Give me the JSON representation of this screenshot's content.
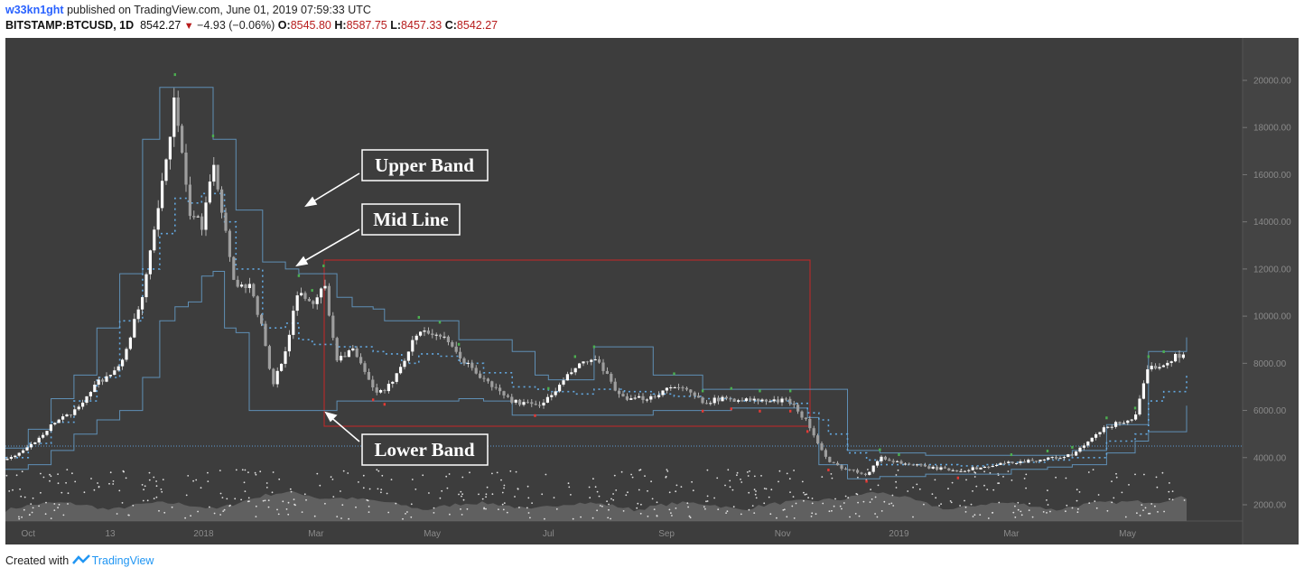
{
  "header": {
    "author": "w33kn1ght",
    "published_text": " published on TradingView.com, June 01, 2019 07:59:33 UTC",
    "symbol": "BITSTAMP:BTCUSD, 1D",
    "last": "8542.27",
    "change": "−4.93 (−0.06%)",
    "open_label": "O:",
    "open": "8545.80",
    "high_label": "H:",
    "high": "8587.75",
    "low_label": "L:",
    "low": "8457.33",
    "close_label": "C:",
    "close": "8542.27"
  },
  "footer": {
    "created_with": "Created with",
    "brand": "TradingView"
  },
  "colors": {
    "background": "#3d3d3d",
    "price_axis_bg": "#444444",
    "candle": "#ffffff",
    "band": "#5f8fb5",
    "mid_line": "#63a8e0",
    "highlight_box": "#c62828",
    "volume": "#666666",
    "up_marker": "#4caf50",
    "down_marker": "#e53935"
  },
  "annotations": [
    {
      "label": "Upper Band"
    },
    {
      "label": "Mid Line"
    },
    {
      "label": "Lower Band"
    }
  ],
  "chart_data": {
    "type": "candlestick",
    "x_ticks": [
      "Oct",
      "13",
      "2018",
      "Mar",
      "May",
      "Jul",
      "Sep",
      "Nov",
      "2019",
      "Mar",
      "May"
    ],
    "y_ticks": [
      "20000.00",
      "18000.00",
      "16000.00",
      "14000.00",
      "12000.00",
      "10000.00",
      "8000.00",
      "6000.00",
      "4000.00",
      "2000.00"
    ],
    "ylim": [
      1500,
      21500
    ],
    "x": [
      "2017-09-19",
      "2017-10-01",
      "2017-10-13",
      "2017-10-25",
      "2017-11-06",
      "2017-11-18",
      "2017-11-30",
      "2017-12-09",
      "2017-12-17",
      "2017-12-24",
      "2017-12-31",
      "2018-01-06",
      "2018-01-12",
      "2018-01-18",
      "2018-01-25",
      "2018-02-01",
      "2018-02-06",
      "2018-02-13",
      "2018-02-20",
      "2018-02-27",
      "2018-03-05",
      "2018-03-12",
      "2018-03-20",
      "2018-03-31",
      "2018-04-06",
      "2018-04-15",
      "2018-04-24",
      "2018-05-05",
      "2018-05-15",
      "2018-05-28",
      "2018-06-12",
      "2018-06-24",
      "2018-07-01",
      "2018-07-15",
      "2018-07-25",
      "2018-08-10",
      "2018-08-25",
      "2018-09-05",
      "2018-09-20",
      "2018-10-05",
      "2018-10-20",
      "2018-11-05",
      "2018-11-14",
      "2018-11-20",
      "2018-11-25",
      "2018-12-05",
      "2018-12-15",
      "2018-12-22",
      "2019-01-01",
      "2019-01-15",
      "2019-02-01",
      "2019-02-15",
      "2019-03-01",
      "2019-03-20",
      "2019-04-02",
      "2019-04-20",
      "2019-05-05",
      "2019-05-12",
      "2019-05-20",
      "2019-06-01"
    ],
    "series": [
      {
        "values": [
          3900,
          4400,
          5400,
          5900,
          7200,
          7800,
          10800,
          14800,
          19300,
          14500,
          13800,
          16800,
          13800,
          11200,
          11400,
          9400,
          7000,
          8600,
          11100,
          10500,
          11500,
          8200,
          8600,
          6900,
          6700,
          8000,
          9400,
          9200,
          8300,
          7300,
          6400,
          6200,
          6500,
          7800,
          8200,
          6400,
          6600,
          7100,
          6400,
          6500,
          6400,
          6400,
          5500,
          4500,
          3800,
          3500,
          3300,
          4000,
          3800,
          3600,
          3450,
          3600,
          3800,
          3950,
          4100,
          5300,
          5700,
          7800,
          8000,
          8542
        ]
      },
      {
        "values": [
          4400,
          5200,
          6500,
          7500,
          9500,
          11800,
          17500,
          19700,
          19700,
          19700,
          19700,
          17500,
          17500,
          14500,
          14500,
          12300,
          12300,
          12000,
          11800,
          11800,
          11800,
          10800,
          10400,
          10300,
          9800,
          9800,
          9800,
          9800,
          9000,
          9000,
          8500,
          7500,
          7300,
          7300,
          8700,
          8700,
          7500,
          7500,
          6900,
          6900,
          6900,
          6900,
          6900,
          6900,
          6900,
          4300,
          4300,
          4200,
          4200,
          4100,
          4100,
          4100,
          4100,
          4100,
          4300,
          5400,
          5400,
          8500,
          8500,
          9100
        ]
      },
      {
        "values": [
          4000,
          4600,
          5500,
          6400,
          7400,
          9800,
          12000,
          13500,
          15000,
          14800,
          15200,
          15200,
          14000,
          12000,
          12000,
          9500,
          9500,
          9700,
          9000,
          8800,
          8800,
          8700,
          8700,
          8500,
          8400,
          8000,
          8400,
          8300,
          8000,
          7600,
          7000,
          6900,
          6800,
          6700,
          6900,
          6800,
          6700,
          6600,
          6500,
          6400,
          6400,
          6300,
          5900,
          5600,
          5000,
          4200,
          3900,
          3700,
          3700,
          3700,
          3650,
          3700,
          3800,
          3900,
          4000,
          4700,
          5000,
          6400,
          6800,
          7500
        ]
      },
      {
        "values": [
          3500,
          3700,
          4300,
          5000,
          5600,
          6000,
          7400,
          9800,
          10400,
          10600,
          11700,
          11900,
          9500,
          9300,
          6000,
          6000,
          6000,
          6000,
          6000,
          6000,
          6000,
          6400,
          6400,
          6400,
          6400,
          6400,
          6400,
          6400,
          6500,
          6400,
          5800,
          5800,
          5800,
          5800,
          5800,
          5800,
          6000,
          6000,
          6000,
          6100,
          6100,
          6100,
          5700,
          3700,
          3700,
          3100,
          3100,
          3200,
          3200,
          3300,
          3300,
          3300,
          3500,
          3600,
          3700,
          4200,
          4700,
          5100,
          5100,
          6200
        ]
      }
    ]
  }
}
